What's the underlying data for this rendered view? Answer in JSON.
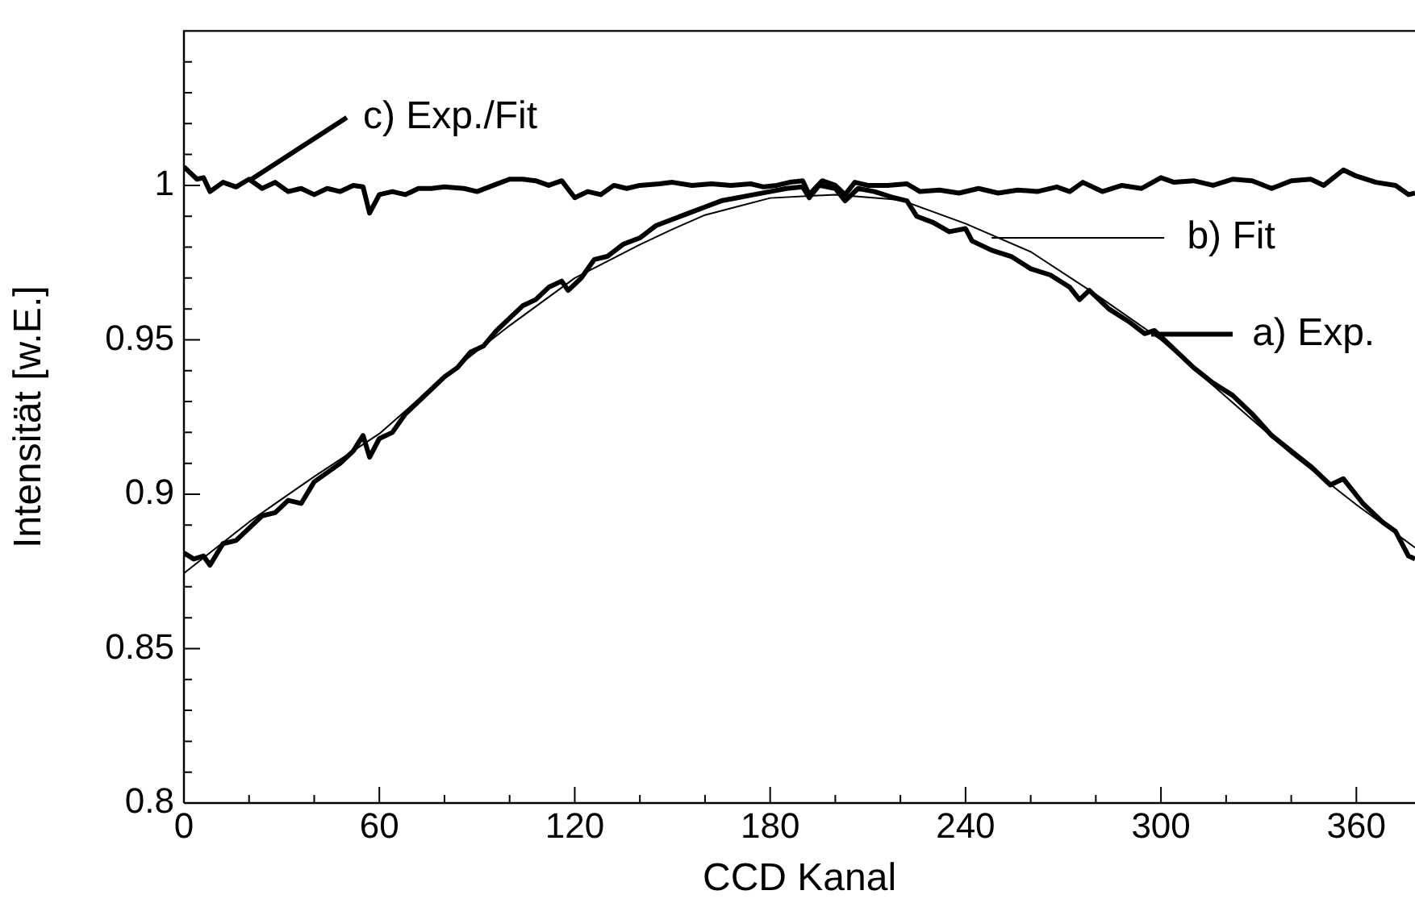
{
  "chart_data": {
    "type": "line",
    "xlabel": "CCD Kanal",
    "ylabel": "Intensität [w.E.]",
    "xlim": [
      0,
      378
    ],
    "ylim": [
      0.8,
      1.05
    ],
    "xticks": [
      0,
      {
        "value": 20,
        "label": null
      },
      {
        "value": 40,
        "label": null
      },
      60,
      {
        "value": 80,
        "label": null
      },
      {
        "value": 100,
        "label": null
      },
      120,
      {
        "value": 140,
        "label": null
      },
      {
        "value": 160,
        "label": null
      },
      180,
      {
        "value": 200,
        "label": null
      },
      {
        "value": 220,
        "label": null
      },
      240,
      {
        "value": 260,
        "label": null
      },
      {
        "value": 280,
        "label": null
      },
      300,
      {
        "value": 320,
        "label": null
      },
      {
        "value": 340,
        "label": null
      },
      360
    ],
    "yticks": [
      0.8,
      {
        "value": 0.81,
        "label": null
      },
      {
        "value": 0.82,
        "label": null
      },
      {
        "value": 0.83,
        "label": null
      },
      {
        "value": 0.84,
        "label": null
      },
      0.85,
      {
        "value": 0.86,
        "label": null
      },
      {
        "value": 0.87,
        "label": null
      },
      {
        "value": 0.88,
        "label": null
      },
      {
        "value": 0.89,
        "label": null
      },
      0.9,
      {
        "value": 0.91,
        "label": null
      },
      {
        "value": 0.92,
        "label": null
      },
      {
        "value": 0.93,
        "label": null
      },
      {
        "value": 0.94,
        "label": null
      },
      0.95,
      {
        "value": 0.96,
        "label": null
      },
      {
        "value": 0.97,
        "label": null
      },
      {
        "value": 0.98,
        "label": null
      },
      {
        "value": 0.99,
        "label": null
      },
      1,
      {
        "value": 1.01,
        "label": null
      },
      {
        "value": 1.02,
        "label": null
      },
      {
        "value": 1.03,
        "label": null
      },
      {
        "value": 1.04,
        "label": null
      }
    ],
    "grid": false,
    "legend": "right",
    "series": [
      {
        "name": "a) Exp.",
        "color": "#000000",
        "x": [
          0,
          3,
          6,
          8,
          12,
          16,
          20,
          24,
          28,
          32,
          36,
          40,
          44,
          48,
          52,
          55,
          57,
          60,
          64,
          68,
          72,
          76,
          80,
          84,
          88,
          92,
          96,
          100,
          104,
          108,
          112,
          116,
          118,
          122,
          126,
          130,
          135,
          140,
          145,
          150,
          155,
          160,
          165,
          170,
          175,
          180,
          185,
          190,
          192,
          195,
          200,
          203,
          207,
          212,
          218,
          222,
          225,
          230,
          235,
          240,
          242,
          248,
          254,
          260,
          266,
          272,
          275,
          278,
          284,
          290,
          295,
          298,
          304,
          310,
          316,
          322,
          328,
          334,
          340,
          346,
          352,
          356,
          362,
          368,
          372,
          376,
          378
        ],
        "values": [
          0.881,
          0.879,
          0.88,
          0.877,
          0.884,
          0.885,
          0.889,
          0.893,
          0.894,
          0.898,
          0.897,
          0.904,
          0.907,
          0.91,
          0.914,
          0.919,
          0.912,
          0.918,
          0.92,
          0.926,
          0.93,
          0.934,
          0.938,
          0.941,
          0.946,
          0.948,
          0.953,
          0.957,
          0.961,
          0.963,
          0.967,
          0.969,
          0.966,
          0.97,
          0.976,
          0.977,
          0.981,
          0.983,
          0.987,
          0.989,
          0.991,
          0.993,
          0.995,
          0.996,
          0.997,
          0.998,
          0.999,
          0.9995,
          0.996,
          1.0,
          0.999,
          0.995,
          0.999,
          0.998,
          0.996,
          0.995,
          0.99,
          0.988,
          0.985,
          0.986,
          0.982,
          0.979,
          0.977,
          0.973,
          0.971,
          0.967,
          0.963,
          0.966,
          0.96,
          0.956,
          0.952,
          0.953,
          0.947,
          0.941,
          0.936,
          0.932,
          0.926,
          0.919,
          0.914,
          0.909,
          0.903,
          0.905,
          0.897,
          0.891,
          0.888,
          0.88,
          0.879
        ]
      },
      {
        "name": "b) Fit",
        "color": "#000000",
        "x": [
          0,
          20,
          30,
          40,
          60,
          80,
          90,
          100,
          120,
          140,
          150,
          160,
          180,
          200,
          220,
          240,
          260,
          280,
          300,
          320,
          340,
          360,
          378
        ],
        "values": [
          0.8744,
          0.891,
          0.8984,
          0.9057,
          0.9196,
          0.938,
          0.9464,
          0.9546,
          0.97,
          0.9808,
          0.9858,
          0.9904,
          0.9959,
          0.997,
          0.9953,
          0.9876,
          0.9785,
          0.9647,
          0.95,
          0.9315,
          0.9131,
          0.8966,
          0.8827
        ]
      },
      {
        "name": "c) Exp./Fit",
        "color": "#000000",
        "x": [
          0,
          2,
          4,
          6,
          8,
          12,
          16,
          20,
          24,
          28,
          32,
          36,
          40,
          44,
          48,
          52,
          55,
          57,
          60,
          64,
          68,
          72,
          76,
          80,
          86,
          90,
          95,
          100,
          104,
          108,
          112,
          116,
          120,
          124,
          128,
          132,
          136,
          140,
          146,
          150,
          156,
          162,
          168,
          174,
          178,
          182,
          186,
          190,
          192,
          196,
          200,
          203,
          206,
          210,
          216,
          222,
          226,
          232,
          238,
          244,
          250,
          256,
          262,
          268,
          272,
          276,
          282,
          288,
          294,
          300,
          304,
          310,
          316,
          322,
          328,
          334,
          340,
          346,
          350,
          356,
          360,
          366,
          372,
          376,
          378
        ],
        "values": [
          1.006,
          1.004,
          1.002,
          1.0025,
          0.998,
          1.001,
          0.9995,
          1.002,
          0.999,
          1.001,
          0.998,
          0.999,
          0.997,
          0.999,
          0.998,
          1.0,
          0.9995,
          0.991,
          0.997,
          0.998,
          0.997,
          0.999,
          0.999,
          0.9995,
          0.999,
          0.998,
          1.0,
          1.002,
          1.002,
          1.0015,
          1.0,
          1.0015,
          0.996,
          0.998,
          0.997,
          1.0,
          0.999,
          1.0,
          1.0005,
          1.001,
          1.0,
          1.0005,
          1.0,
          1.0005,
          0.9995,
          1.0,
          1.001,
          1.0015,
          0.997,
          1.0015,
          1.0,
          0.997,
          1.001,
          1.0,
          1.0,
          1.0005,
          0.998,
          0.9985,
          0.9975,
          0.999,
          0.9975,
          0.9985,
          0.998,
          0.9995,
          0.998,
          1.001,
          0.998,
          1.0,
          0.999,
          1.0025,
          1.001,
          1.0015,
          1.0,
          1.002,
          1.0015,
          0.999,
          1.0015,
          1.002,
          1.0,
          1.005,
          1.003,
          1.001,
          1.0,
          0.997,
          0.9975
        ]
      }
    ]
  }
}
